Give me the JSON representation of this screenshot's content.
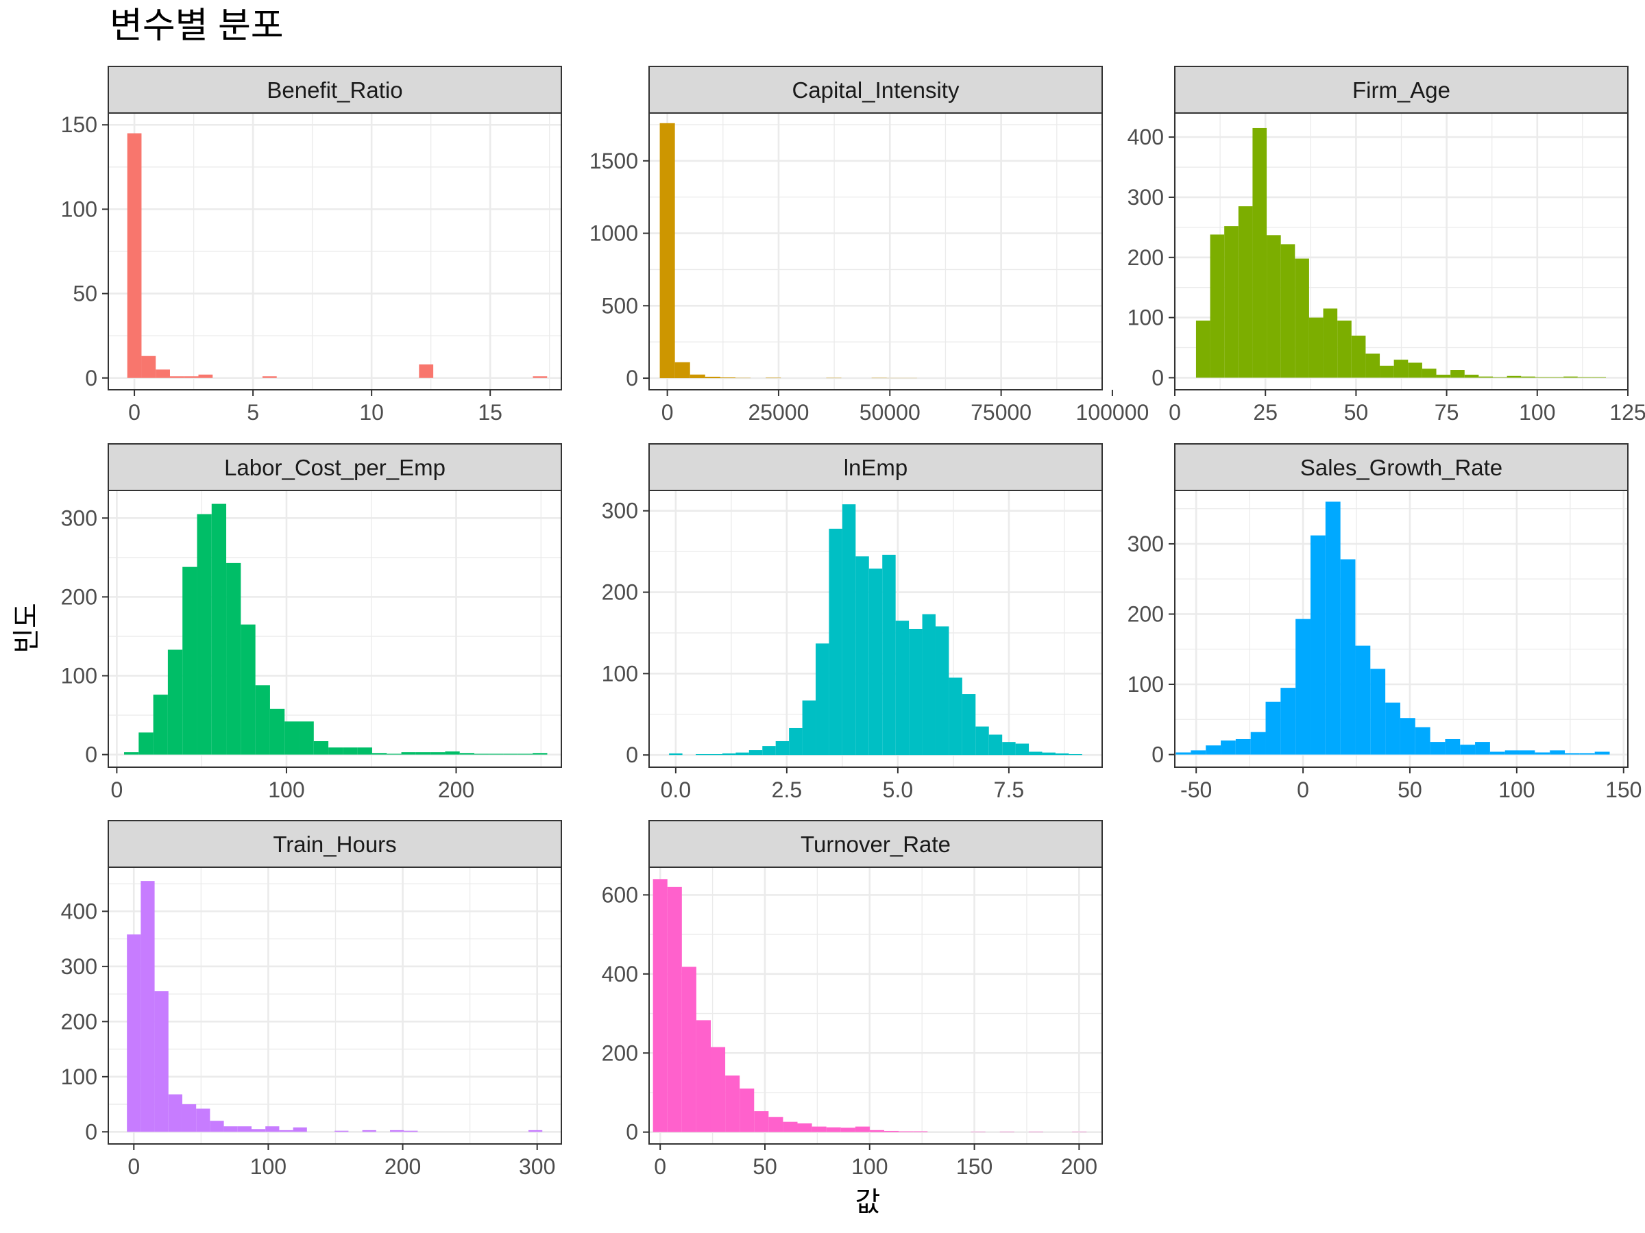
{
  "title": "변수별 분포",
  "xlabel": "값",
  "ylabel": "빈도",
  "chart_data": [
    {
      "type": "bar",
      "name": "Benefit_Ratio",
      "color": "#F8766D",
      "bin_width": 0.6,
      "x": [
        0.0,
        0.6,
        1.2,
        1.8,
        2.4,
        3.0,
        5.7,
        12.3,
        17.1
      ],
      "values": [
        145,
        13,
        5,
        1,
        1,
        2,
        1,
        8,
        1
      ],
      "xlim": [
        -1.1,
        18.0
      ],
      "ylim": [
        -7,
        157
      ],
      "xticks": [
        0,
        5,
        10,
        15
      ],
      "xtick_labels": [
        "0",
        "5",
        "10",
        "15"
      ],
      "yticks": [
        0,
        50,
        100,
        150
      ],
      "ytick_labels": [
        "0",
        "50",
        "100",
        "150"
      ]
    },
    {
      "type": "bar",
      "name": "Capital_Intensity",
      "color": "#CD9600",
      "bin_width": 3400,
      "x": [
        0,
        3400,
        6800,
        10200,
        13600,
        17000,
        23800,
        37400,
        47600,
        51000,
        54400
      ],
      "values": [
        1760,
        110,
        25,
        10,
        5,
        2,
        3,
        2,
        2,
        1,
        1
      ],
      "xlim": [
        -4100,
        97700
      ],
      "ylim": [
        -80,
        1830
      ],
      "xticks": [
        0,
        25000,
        50000,
        75000,
        100000
      ],
      "xtick_labels": [
        "0",
        "25000",
        "50000",
        "75000",
        "100000"
      ],
      "yticks": [
        0,
        500,
        1000,
        1500
      ],
      "ytick_labels": [
        "0",
        "500",
        "1000",
        "1500"
      ]
    },
    {
      "type": "bar",
      "name": "Firm_Age",
      "color": "#7CAE00",
      "bin_width": 3.9,
      "x": [
        7.8,
        11.7,
        15.6,
        19.5,
        23.4,
        27.3,
        31.2,
        35.1,
        39.0,
        42.9,
        46.8,
        50.7,
        54.6,
        58.5,
        62.4,
        66.3,
        70.2,
        74.1,
        78.0,
        81.9,
        85.8,
        89.7,
        93.6,
        97.5,
        101.4,
        105.3,
        109.2,
        113.1,
        117.0
      ],
      "values": [
        95,
        238,
        252,
        285,
        415,
        237,
        222,
        198,
        100,
        115,
        95,
        70,
        40,
        20,
        30,
        25,
        15,
        5,
        13,
        5,
        2,
        1,
        3,
        2,
        1,
        1,
        2,
        1,
        1
      ],
      "xlim": [
        0,
        125
      ],
      "ylim": [
        -20,
        440
      ],
      "xticks": [
        0,
        25,
        50,
        75,
        100,
        125
      ],
      "xtick_labels": [
        "0",
        "25",
        "50",
        "75",
        "100",
        "125"
      ],
      "yticks": [
        0,
        100,
        200,
        300,
        400
      ],
      "ytick_labels": [
        "0",
        "100",
        "200",
        "300",
        "400"
      ]
    },
    {
      "type": "bar",
      "name": "Labor_Cost_per_Emp",
      "color": "#00BE67",
      "bin_width": 8.6,
      "x": [
        8.6,
        17.2,
        25.8,
        34.4,
        43.0,
        51.6,
        60.2,
        68.8,
        77.4,
        86.0,
        94.6,
        103.2,
        111.8,
        120.4,
        129.0,
        137.6,
        146.2,
        154.8,
        163.4,
        172.0,
        180.6,
        189.2,
        197.8,
        206.4,
        215.0,
        223.6,
        232.2,
        240.8,
        249.4
      ],
      "values": [
        3,
        28,
        76,
        133,
        238,
        305,
        318,
        243,
        165,
        88,
        58,
        42,
        42,
        17,
        9,
        9,
        9,
        2,
        1,
        3,
        3,
        3,
        4,
        2,
        1,
        1,
        1,
        1,
        2
      ],
      "xlim": [
        -5,
        262
      ],
      "ylim": [
        -16,
        335
      ],
      "xticks": [
        0,
        100,
        200
      ],
      "xtick_labels": [
        "0",
        "100",
        "200"
      ],
      "yticks": [
        0,
        100,
        200,
        300
      ],
      "ytick_labels": [
        "0",
        "100",
        "200",
        "300"
      ]
    },
    {
      "type": "bar",
      "name": "lnEmp",
      "color": "#00BFC4",
      "bin_width": 0.3,
      "x": [
        0.0,
        0.3,
        0.6,
        0.9,
        1.2,
        1.5,
        1.8,
        2.1,
        2.4,
        2.7,
        3.0,
        3.3,
        3.6,
        3.9,
        4.2,
        4.5,
        4.8,
        5.1,
        5.4,
        5.7,
        6.0,
        6.3,
        6.6,
        6.9,
        7.2,
        7.5,
        7.8,
        8.1,
        8.4,
        8.7,
        9.0
      ],
      "values": [
        2,
        0,
        1,
        1,
        2,
        3,
        6,
        11,
        17,
        33,
        67,
        137,
        278,
        308,
        244,
        229,
        246,
        165,
        155,
        173,
        158,
        95,
        75,
        35,
        25,
        16,
        14,
        4,
        3,
        2,
        1
      ],
      "xlim": [
        -0.6,
        9.6
      ],
      "ylim": [
        -15,
        325
      ],
      "xticks": [
        0.0,
        2.5,
        5.0,
        7.5
      ],
      "xtick_labels": [
        "0.0",
        "2.5",
        "5.0",
        "7.5"
      ],
      "yticks": [
        0,
        100,
        200,
        300
      ],
      "ytick_labels": [
        "0",
        "100",
        "200",
        "300"
      ]
    },
    {
      "type": "bar",
      "name": "Sales_Growth_Rate",
      "color": "#00A9FF",
      "bin_width": 7,
      "x": [
        -56,
        -49,
        -42,
        -35,
        -28,
        -21,
        -14,
        -7,
        0,
        7,
        14,
        21,
        28,
        35,
        42,
        49,
        56,
        63,
        70,
        77,
        84,
        91,
        98,
        105,
        112,
        119,
        126,
        133,
        140
      ],
      "values": [
        3,
        6,
        13,
        20,
        22,
        32,
        75,
        95,
        193,
        312,
        360,
        278,
        155,
        122,
        74,
        52,
        39,
        18,
        22,
        14,
        18,
        4,
        6,
        6,
        3,
        6,
        2,
        2,
        4
      ],
      "xlim": [
        -60,
        152
      ],
      "ylim": [
        -18,
        376
      ],
      "xticks": [
        -50,
        0,
        50,
        100,
        150
      ],
      "xtick_labels": [
        "-50",
        "0",
        "50",
        "100",
        "150"
      ],
      "yticks": [
        0,
        100,
        200,
        300
      ],
      "ytick_labels": [
        "0",
        "100",
        "200",
        "300"
      ]
    },
    {
      "type": "bar",
      "name": "Train_Hours",
      "color": "#C77CFF",
      "bin_width": 10.3,
      "x": [
        0,
        10.3,
        20.6,
        30.9,
        41.2,
        51.5,
        61.8,
        72.1,
        82.4,
        92.7,
        103,
        113.3,
        123.6,
        154.5,
        175.1,
        195.7,
        206,
        298.7
      ],
      "values": [
        358,
        455,
        255,
        68,
        50,
        42,
        20,
        10,
        10,
        5,
        10,
        3,
        8,
        2,
        3,
        3,
        2,
        3
      ],
      "xlim": [
        -19,
        318
      ],
      "ylim": [
        -22,
        480
      ],
      "xticks": [
        0,
        100,
        200,
        300
      ],
      "xtick_labels": [
        "0",
        "100",
        "200",
        "300"
      ],
      "yticks": [
        0,
        100,
        200,
        300,
        400
      ],
      "ytick_labels": [
        "0",
        "100",
        "200",
        "300",
        "400"
      ]
    },
    {
      "type": "bar",
      "name": "Turnover_Rate",
      "color": "#FF61CC",
      "bin_width": 6.9,
      "x": [
        0,
        6.9,
        13.8,
        20.7,
        27.6,
        34.5,
        41.4,
        48.3,
        55.2,
        62.1,
        69.0,
        75.9,
        82.8,
        89.7,
        96.6,
        103.5,
        110.4,
        117.3,
        124.2,
        151.8,
        165.6,
        179.4,
        200.1
      ],
      "values": [
        640,
        620,
        418,
        283,
        215,
        143,
        110,
        53,
        38,
        26,
        22,
        14,
        12,
        11,
        14,
        5,
        3,
        2,
        2,
        1,
        1,
        1,
        1
      ],
      "xlim": [
        -5.3,
        211
      ],
      "ylim": [
        -30,
        670
      ],
      "xticks": [
        0,
        50,
        100,
        150,
        200
      ],
      "xtick_labels": [
        "0",
        "50",
        "100",
        "150",
        "200"
      ],
      "yticks": [
        0,
        200,
        400,
        600
      ],
      "ytick_labels": [
        "0",
        "200",
        "400",
        "600"
      ]
    }
  ]
}
